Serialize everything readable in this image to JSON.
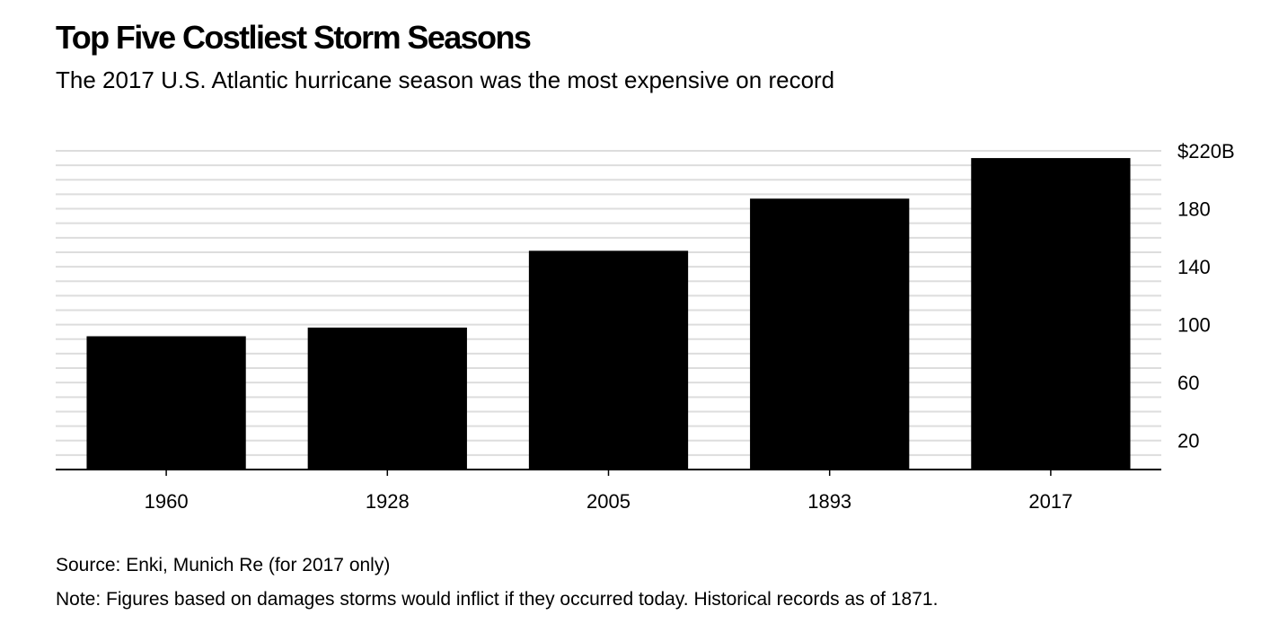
{
  "chart_data": {
    "type": "bar",
    "title": "Top Five Costliest Storm Seasons",
    "subtitle": "The 2017 U.S. Atlantic hurricane season was the most expensive on record",
    "categories": [
      "1960",
      "1928",
      "2005",
      "1893",
      "2017"
    ],
    "values": [
      92,
      98,
      151,
      187,
      215
    ],
    "y_unit_prefix": "$",
    "y_unit_suffix": "B",
    "ylim": [
      0,
      220
    ],
    "yticks": [
      20,
      60,
      100,
      140,
      180,
      220
    ],
    "ytick_labels": [
      "20",
      "60",
      "100",
      "140",
      "180",
      "$220B"
    ],
    "y_axis_position": "right",
    "grid": true,
    "bar_color": "#000000",
    "grid_color": "#dddddd",
    "source": "Source: Enki, Munich Re (for 2017 only)",
    "note": "Note: Figures based on damages storms would inflict if they occurred today. Historical records as of 1871."
  }
}
